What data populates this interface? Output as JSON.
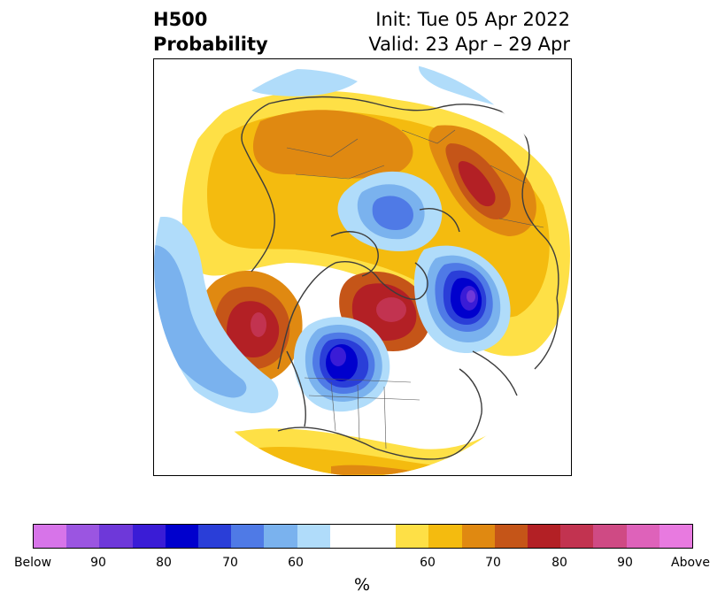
{
  "title": {
    "left_line1": "H500",
    "left_line2": "Probability",
    "right_line1": "Init: Tue 05 Apr 2022",
    "right_line2": "Valid: 23 Apr – 29 Apr"
  },
  "map": {
    "projection": "north-polar-stereographic",
    "anomalies": [
      {
        "region": "Arctic / North Atlantic",
        "sign": "below",
        "peak": 70
      },
      {
        "region": "Eastern North America",
        "sign": "below",
        "peak": 90
      },
      {
        "region": "North Pacific",
        "sign": "below",
        "peak": 60
      },
      {
        "region": "East Asia / Siberia",
        "sign": "below",
        "peak": 90
      },
      {
        "region": "Gulf of Alaska",
        "sign": "above",
        "peak": 90
      },
      {
        "region": "Northern Europe",
        "sign": "above",
        "peak": 80
      },
      {
        "region": "Western Canada",
        "sign": "above",
        "peak": 90
      }
    ]
  },
  "colorbar": {
    "colors": [
      "#d774e9",
      "#9b55e1",
      "#6e38d9",
      "#3a1cd6",
      "#0000cd",
      "#2a3ed8",
      "#4f7ae6",
      "#7ab2ee",
      "#b0dcfa",
      "#ffffff",
      "#fee046",
      "#f4bb0f",
      "#e08911",
      "#c55518",
      "#b32025",
      "#c23350",
      "#cf4a84",
      "#de62ba",
      "#e87ae0"
    ],
    "tick_labels": [
      "Below",
      "90",
      "80",
      "70",
      "60",
      "60",
      "70",
      "80",
      "90",
      "Above"
    ],
    "unit": "%"
  }
}
